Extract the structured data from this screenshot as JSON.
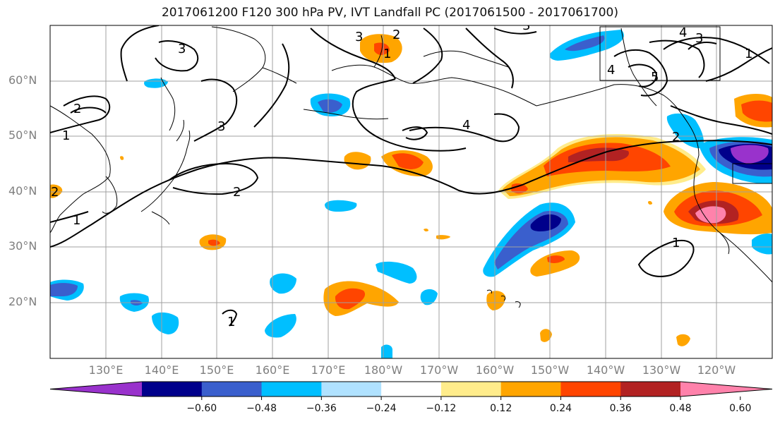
{
  "title": "2017061200 F120 300 hPa PV, IVT Landfall PC (2017061500 - 2017061700)",
  "lat_labels": [
    "60°N",
    "50°N",
    "40°N",
    "30°N",
    "20°N"
  ],
  "lon_labels": [
    "130°E",
    "140°E",
    "150°E",
    "160°E",
    "170°E",
    "180°W",
    "170°W",
    "160°W",
    "150°W",
    "140°W",
    "130°W",
    "120°W"
  ],
  "contour_labels": [
    "1",
    "2",
    "3",
    "4",
    "5"
  ],
  "colorbar": {
    "colors": [
      "#9932cc",
      "#00008b",
      "#3a5fcd",
      "#00bfff",
      "#b0e2ff",
      "#ffffff",
      "#ffec8b",
      "#ffa500",
      "#ff4500",
      "#b22222",
      "#ff82ab"
    ],
    "tick_labels": [
      "−0.60",
      "−0.48",
      "−0.36",
      "−0.24",
      "−0.12",
      "0.12",
      "0.24",
      "0.36",
      "0.48",
      "0.60"
    ]
  }
}
